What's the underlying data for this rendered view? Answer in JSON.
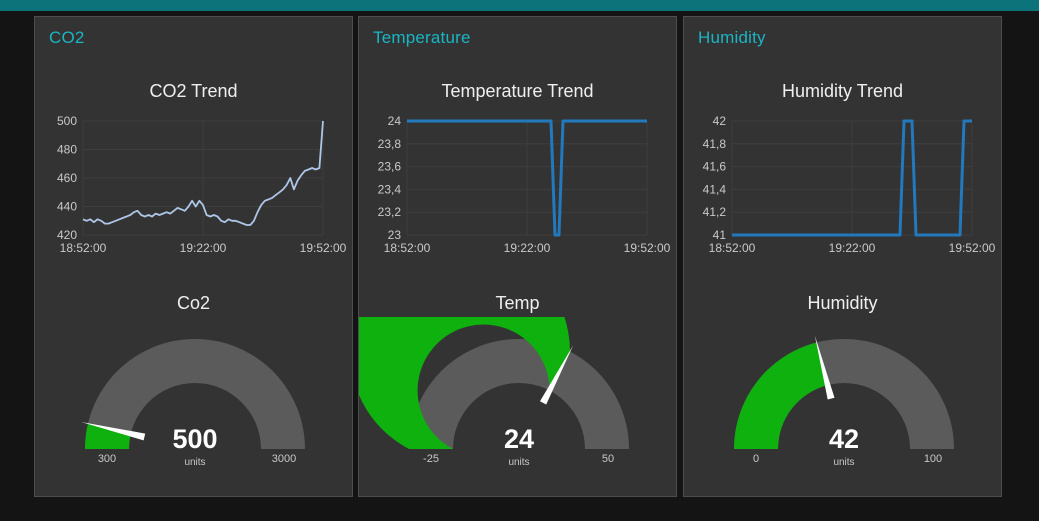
{
  "app": {
    "topbar_color": "#0c737a",
    "background": "#141414",
    "panel_background": "#333333",
    "panel_border": "#4e4e4e",
    "group_title_color": "#1ab5c4"
  },
  "panels": [
    {
      "group_title": "CO2"
    },
    {
      "group_title": "Temperature"
    },
    {
      "group_title": "Humidity"
    }
  ],
  "chart_data": [
    {
      "type": "line",
      "title": "CO2 Trend",
      "x_tick_labels": [
        "18:52:00",
        "19:22:00",
        "19:52:00"
      ],
      "y_ticks": [
        420,
        440,
        460,
        480,
        500
      ],
      "y_tick_labels": [
        "420",
        "440",
        "460",
        "480",
        "500"
      ],
      "ylim": [
        420,
        500
      ],
      "grid": true,
      "grid_color": "#3e3e3e",
      "line_color": "#aec7e8",
      "line_width": 1.8,
      "values": [
        431,
        430,
        431,
        429,
        431,
        430,
        428,
        428,
        429,
        430,
        431,
        432,
        433,
        434,
        436,
        437,
        434,
        433,
        434,
        433,
        435,
        434,
        435,
        436,
        435,
        437,
        439,
        438,
        437,
        440,
        444,
        440,
        444,
        441,
        434,
        433,
        434,
        433,
        430,
        429,
        431,
        430,
        430,
        429,
        428,
        427,
        427,
        430,
        436,
        441,
        444,
        445,
        446,
        448,
        450,
        452,
        455,
        460,
        452,
        458,
        462,
        465,
        466,
        467,
        466,
        467,
        500
      ]
    },
    {
      "type": "gauge",
      "title": "Co2",
      "value": 500,
      "value_label": "500",
      "min": 300,
      "max": 3000,
      "min_label": "300",
      "max_label": "3000",
      "units": "units",
      "track_color": "#5b5b5b",
      "fill_color": "#0fb10f",
      "needle_color": "#ffffff"
    },
    {
      "type": "line",
      "title": "Temperature Trend",
      "x_tick_labels": [
        "18:52:00",
        "19:22:00",
        "19:52:00"
      ],
      "y_ticks": [
        23,
        23.2,
        23.4,
        23.6,
        23.8,
        24
      ],
      "y_tick_labels": [
        "23",
        "23,2",
        "23,4",
        "23,6",
        "23,8",
        "24"
      ],
      "ylim": [
        23,
        24
      ],
      "grid": true,
      "grid_color": "#3e3e3e",
      "line_color": "#2279bd",
      "line_width": 3,
      "values": [
        24,
        24,
        24,
        24,
        24,
        24,
        24,
        24,
        24,
        24,
        24,
        24,
        24,
        24,
        24,
        24,
        24,
        24,
        24,
        24,
        24,
        24,
        24,
        24,
        24,
        24,
        24,
        24,
        24,
        24,
        24,
        24,
        24,
        24,
        24,
        24,
        24,
        23,
        23,
        24,
        24,
        24,
        24,
        24,
        24,
        24,
        24,
        24,
        24,
        24,
        24,
        24,
        24,
        24,
        24,
        24,
        24,
        24,
        24,
        24,
        24
      ]
    },
    {
      "type": "gauge",
      "title": "Temp",
      "value": 24,
      "value_label": "24",
      "min": -25,
      "max": 50,
      "min_label": "-25",
      "max_label": "50",
      "units": "units",
      "track_color": "#5b5b5b",
      "fill_color": "#0fb10f",
      "needle_color": "#ffffff"
    },
    {
      "type": "line",
      "title": "Humidity Trend",
      "x_tick_labels": [
        "18:52:00",
        "19:22:00",
        "19:52:00"
      ],
      "y_ticks": [
        41,
        41.2,
        41.4,
        41.6,
        41.8,
        42
      ],
      "y_tick_labels": [
        "41",
        "41,2",
        "41,4",
        "41,6",
        "41,8",
        "42"
      ],
      "ylim": [
        41,
        42
      ],
      "grid": true,
      "grid_color": "#3e3e3e",
      "line_color": "#2279bd",
      "line_width": 3,
      "values": [
        41,
        41,
        41,
        41,
        41,
        41,
        41,
        41,
        41,
        41,
        41,
        41,
        41,
        41,
        41,
        41,
        41,
        41,
        41,
        41,
        41,
        41,
        41,
        41,
        41,
        41,
        41,
        41,
        41,
        41,
        41,
        41,
        41,
        41,
        41,
        41,
        41,
        41,
        41,
        41,
        41,
        41,
        41,
        42,
        42,
        42,
        41,
        41,
        41,
        41,
        41,
        41,
        41,
        41,
        41,
        41,
        41,
        41,
        42,
        42,
        42
      ]
    },
    {
      "type": "gauge",
      "title": "Humidity",
      "value": 42,
      "value_label": "42",
      "min": 0,
      "max": 100,
      "min_label": "0",
      "max_label": "100",
      "units": "units",
      "track_color": "#5b5b5b",
      "fill_color": "#0fb10f",
      "needle_color": "#ffffff"
    }
  ]
}
